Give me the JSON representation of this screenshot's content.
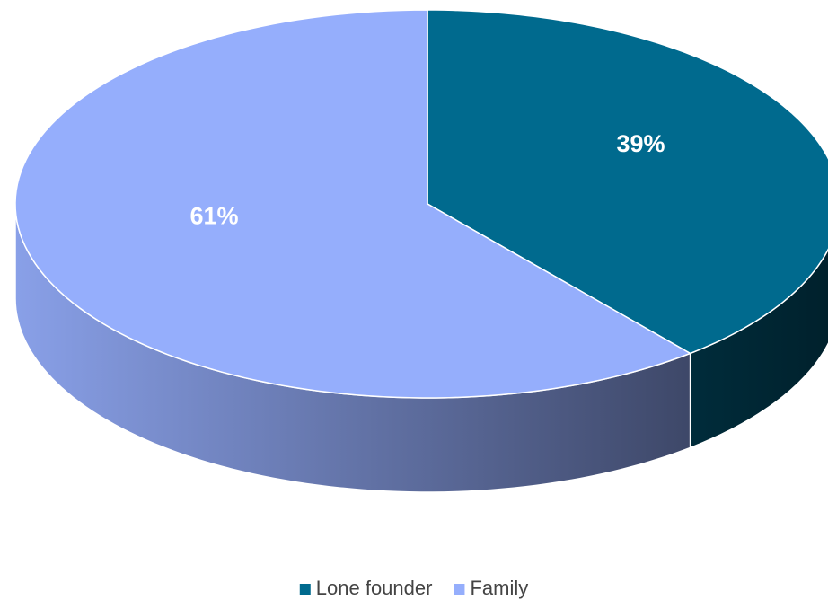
{
  "chart_data": {
    "type": "pie",
    "categories": [
      "Lone founder",
      "Family"
    ],
    "values": [
      39,
      61
    ],
    "value_labels": [
      "39%",
      "61%"
    ],
    "colors": [
      "#006a8e",
      "#95aefc"
    ],
    "legend": "bottom"
  }
}
